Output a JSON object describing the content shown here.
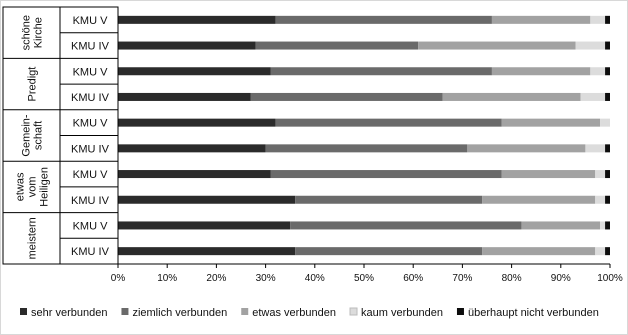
{
  "chart_data": {
    "type": "bar",
    "orientation": "horizontal",
    "stacked": true,
    "percent": true,
    "xlim": [
      0,
      100
    ],
    "x_ticks": [
      "0%",
      "10%",
      "20%",
      "30%",
      "40%",
      "50%",
      "60%",
      "70%",
      "80%",
      "90%",
      "100%"
    ],
    "grid": false,
    "legend_position": "bottom",
    "groups": [
      {
        "label_lines": [
          "schöne",
          "Kirche"
        ],
        "categories": [
          "KMU V",
          "KMU IV"
        ]
      },
      {
        "label_lines": [
          "Predigt"
        ],
        "categories": [
          "KMU V",
          "KMU IV"
        ]
      },
      {
        "label_lines": [
          "Gemein-",
          "schaft"
        ],
        "categories": [
          "KMU V",
          "KMU IV"
        ]
      },
      {
        "label_lines": [
          "etwas",
          "vom",
          "Heiligen"
        ],
        "categories": [
          "KMU V",
          "KMU IV"
        ]
      },
      {
        "label_lines": [
          "meistern"
        ],
        "categories": [
          "KMU V",
          "KMU IV"
        ]
      }
    ],
    "series": [
      {
        "name": "sehr verbunden",
        "color": "#2b2b2b",
        "values": [
          32,
          28,
          31,
          27,
          32,
          30,
          31,
          36,
          35,
          36
        ]
      },
      {
        "name": "ziemlich verbunden",
        "color": "#6a6a6a",
        "values": [
          44,
          33,
          45,
          39,
          46,
          41,
          47,
          38,
          47,
          38
        ]
      },
      {
        "name": "etwas verbunden",
        "color": "#a2a2a2",
        "values": [
          20,
          32,
          20,
          28,
          20,
          24,
          19,
          23,
          16,
          23
        ]
      },
      {
        "name": "kaum verbunden",
        "color": "#dcdcdc",
        "values": [
          3,
          6,
          3,
          5,
          2,
          4,
          2,
          2,
          1,
          2
        ]
      },
      {
        "name": "überhaupt nicht verbunden",
        "color": "#0d0d0d",
        "values": [
          1,
          1,
          1,
          1,
          0,
          1,
          1,
          1,
          1,
          1
        ]
      }
    ]
  }
}
